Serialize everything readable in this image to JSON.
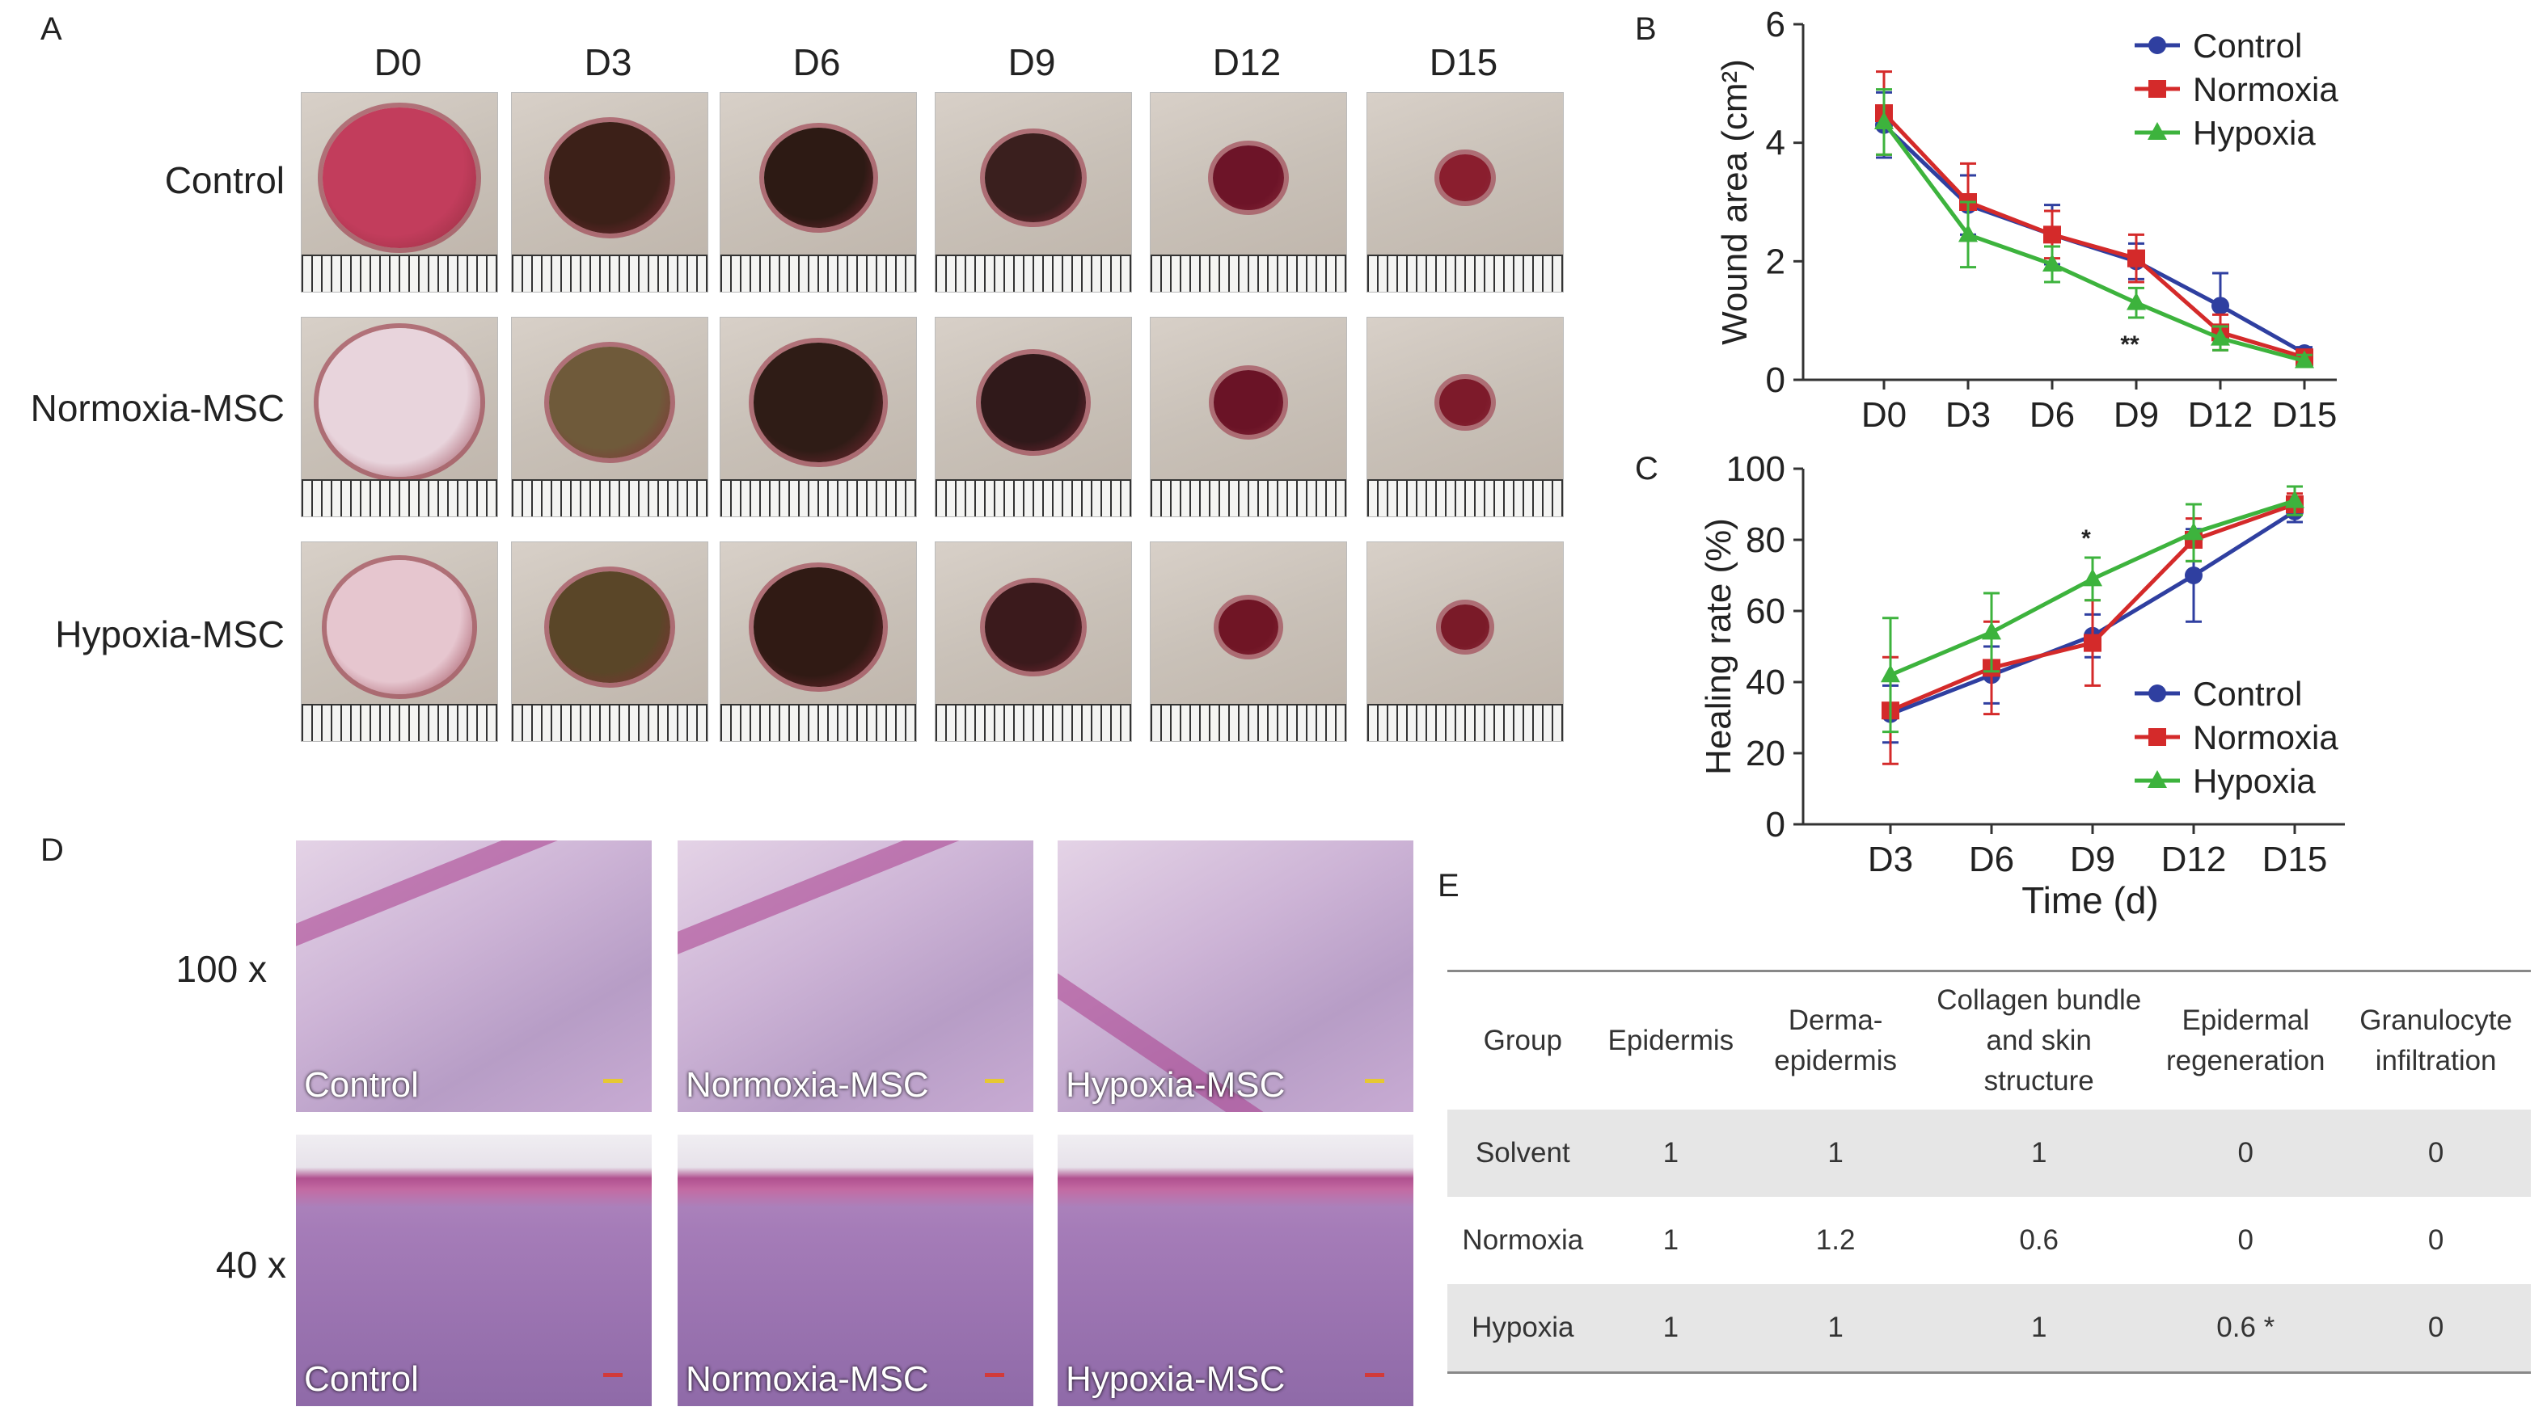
{
  "panels": {
    "a": "A",
    "b": "B",
    "c": "C",
    "d": "D",
    "e": "E"
  },
  "panel_a": {
    "days": [
      "D0",
      "D3",
      "D6",
      "D9",
      "D12",
      "D15"
    ],
    "rows": [
      "Control",
      "Normoxia-MSC",
      "Hypoxia-MSC"
    ]
  },
  "chart_data": [
    {
      "type": "line",
      "panel": "B",
      "categories": [
        "D0",
        "D3",
        "D6",
        "D9",
        "D12",
        "D15"
      ],
      "ylabel": "Wound area (cm²)",
      "xlabel": "",
      "ylim": [
        0,
        6
      ],
      "yticks": [
        0,
        2,
        4,
        6
      ],
      "legend_position": "top-right",
      "annotations": [
        {
          "text": "**",
          "category": "D9"
        }
      ],
      "series": [
        {
          "name": "Control",
          "color": "#2f3fa0",
          "marker": "circle",
          "values": [
            4.3,
            2.95,
            2.45,
            2.0,
            1.25,
            0.45
          ],
          "errors": [
            0.55,
            0.5,
            0.5,
            0.3,
            0.55,
            0.1
          ]
        },
        {
          "name": "Normoxia",
          "color": "#d42a2a",
          "marker": "square",
          "values": [
            4.5,
            3.0,
            2.45,
            2.05,
            0.8,
            0.38
          ],
          "errors": [
            0.7,
            0.65,
            0.4,
            0.4,
            0.3,
            0.1
          ]
        },
        {
          "name": "Hypoxia",
          "color": "#3db33d",
          "marker": "triangle",
          "values": [
            4.35,
            2.45,
            1.95,
            1.3,
            0.7,
            0.32
          ],
          "errors": [
            0.55,
            0.55,
            0.3,
            0.25,
            0.2,
            0.1
          ]
        }
      ]
    },
    {
      "type": "line",
      "panel": "C",
      "categories": [
        "D3",
        "D6",
        "D9",
        "D12",
        "D15"
      ],
      "ylabel": "Healing rate (%)",
      "xlabel": "Time (d)",
      "ylim": [
        0,
        100
      ],
      "yticks": [
        0,
        20,
        40,
        60,
        80,
        100
      ],
      "legend_position": "bottom-right",
      "annotations": [
        {
          "text": "*",
          "category": "D9"
        }
      ],
      "series": [
        {
          "name": "Control",
          "color": "#2f3fa0",
          "marker": "circle",
          "values": [
            31,
            42,
            53,
            70,
            88
          ],
          "errors": [
            8,
            8,
            6,
            13,
            3
          ]
        },
        {
          "name": "Normoxia",
          "color": "#d42a2a",
          "marker": "square",
          "values": [
            32,
            44,
            51,
            80,
            90
          ],
          "errors": [
            15,
            13,
            12,
            6,
            3
          ]
        },
        {
          "name": "Hypoxia",
          "color": "#3db33d",
          "marker": "triangle",
          "values": [
            42,
            54,
            69,
            82,
            91
          ],
          "errors": [
            16,
            11,
            6,
            8,
            4
          ]
        }
      ]
    }
  ],
  "panel_d": {
    "magnifications": [
      "100 x",
      "40 x"
    ],
    "groups": [
      "Control",
      "Normoxia-MSC",
      "Hypoxia-MSC"
    ]
  },
  "table": {
    "headers": [
      "Group",
      "Epidermis",
      "Derma-\nepidermis",
      "Collagen bundle\nand skin\nstructure",
      "Epidermal\nregeneration",
      "Granulocyte\ninfiltration"
    ],
    "rows": [
      [
        "Solvent",
        "1",
        "1",
        "1",
        "0",
        "0"
      ],
      [
        "Normoxia",
        "1",
        "1.2",
        "0.6",
        "0",
        "0"
      ],
      [
        "Hypoxia",
        "1",
        "1",
        "1",
        "0.6 *",
        "0"
      ]
    ]
  }
}
